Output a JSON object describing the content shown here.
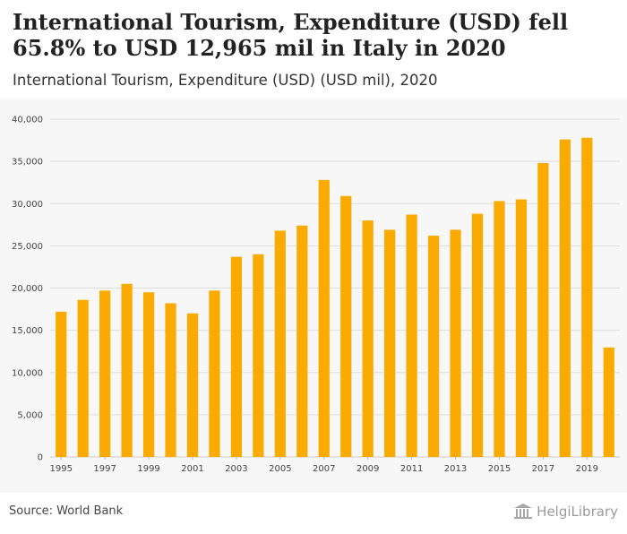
{
  "header": {
    "title": "International Tourism, Expenditure (USD) fell 65.8% to USD 12,965 mil in Italy in 2020",
    "subtitle": "International Tourism, Expenditure (USD) (USD mil), 2020"
  },
  "footer": {
    "source": "Source: World Bank",
    "brand": "HelgiLibrary"
  },
  "colors": {
    "bar": "#fbab00",
    "grid": "#dddddd",
    "plot_background": "#f7f7f7"
  },
  "chart_data": {
    "type": "bar",
    "title": "International Tourism, Expenditure (USD) fell 65.8% to USD 12,965 mil in Italy in 2020",
    "subtitle": "International Tourism, Expenditure (USD) (USD mil), 2020",
    "xlabel": "",
    "ylabel": "",
    "categories": [
      "1995",
      "1996",
      "1997",
      "1998",
      "1999",
      "2000",
      "2001",
      "2002",
      "2003",
      "2004",
      "2005",
      "2006",
      "2007",
      "2008",
      "2009",
      "2010",
      "2011",
      "2012",
      "2013",
      "2014",
      "2015",
      "2016",
      "2017",
      "2018",
      "2019",
      "2020"
    ],
    "x_tick_labels": [
      "1995",
      "1997",
      "1999",
      "2001",
      "2003",
      "2005",
      "2007",
      "2009",
      "2011",
      "2013",
      "2015",
      "2017",
      "2019"
    ],
    "values": [
      17200,
      18600,
      19700,
      20500,
      19500,
      18200,
      17000,
      19700,
      23700,
      24000,
      26800,
      27400,
      32800,
      30900,
      28000,
      26900,
      28700,
      26200,
      26900,
      28800,
      30300,
      30500,
      34800,
      37600,
      37800,
      12965
    ],
    "ylim": [
      0,
      40000
    ],
    "y_ticks": [
      0,
      5000,
      10000,
      15000,
      20000,
      25000,
      30000,
      35000,
      40000
    ],
    "y_tick_labels": [
      "0",
      "5,000",
      "10,000",
      "15,000",
      "20,000",
      "25,000",
      "30,000",
      "35,000",
      "40,000"
    ],
    "grid": true,
    "legend": "none"
  }
}
